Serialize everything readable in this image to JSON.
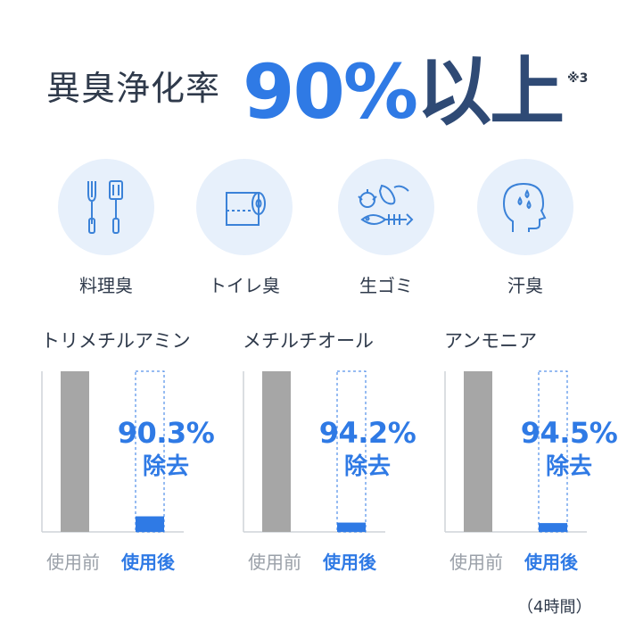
{
  "headline": {
    "label": "異臭浄化率",
    "value": "90%",
    "suffix": "以上",
    "note": "※3"
  },
  "odor_types": [
    {
      "label": "料理臭",
      "icon": "cooking-utensils-icon"
    },
    {
      "label": "トイレ臭",
      "icon": "toilet-paper-icon"
    },
    {
      "label": "生ゴミ",
      "icon": "garbage-icon"
    },
    {
      "label": "汗臭",
      "icon": "sweat-head-icon"
    }
  ],
  "colors": {
    "accent": "#2f7ae5",
    "before_bar": "#a6a6a6",
    "icon_bg": "#e7f0fb",
    "text": "#2f3a4b"
  },
  "chart_data": [
    {
      "type": "bar",
      "title": "トリメチルアミン",
      "categories": [
        "使用前",
        "使用後"
      ],
      "values": [
        100,
        9.7
      ],
      "annotation": {
        "percent": "90.3%",
        "text": "除去"
      },
      "ylim": [
        0,
        100
      ]
    },
    {
      "type": "bar",
      "title": "メチルチオール",
      "categories": [
        "使用前",
        "使用後"
      ],
      "values": [
        100,
        5.8
      ],
      "annotation": {
        "percent": "94.2%",
        "text": "除去"
      },
      "ylim": [
        0,
        100
      ]
    },
    {
      "type": "bar",
      "title": "アンモニア",
      "categories": [
        "使用前",
        "使用後"
      ],
      "values": [
        100,
        5.5
      ],
      "annotation": {
        "percent": "94.5%",
        "text": "除去"
      },
      "ylim": [
        0,
        100
      ]
    }
  ],
  "footnote": "（4時間）"
}
